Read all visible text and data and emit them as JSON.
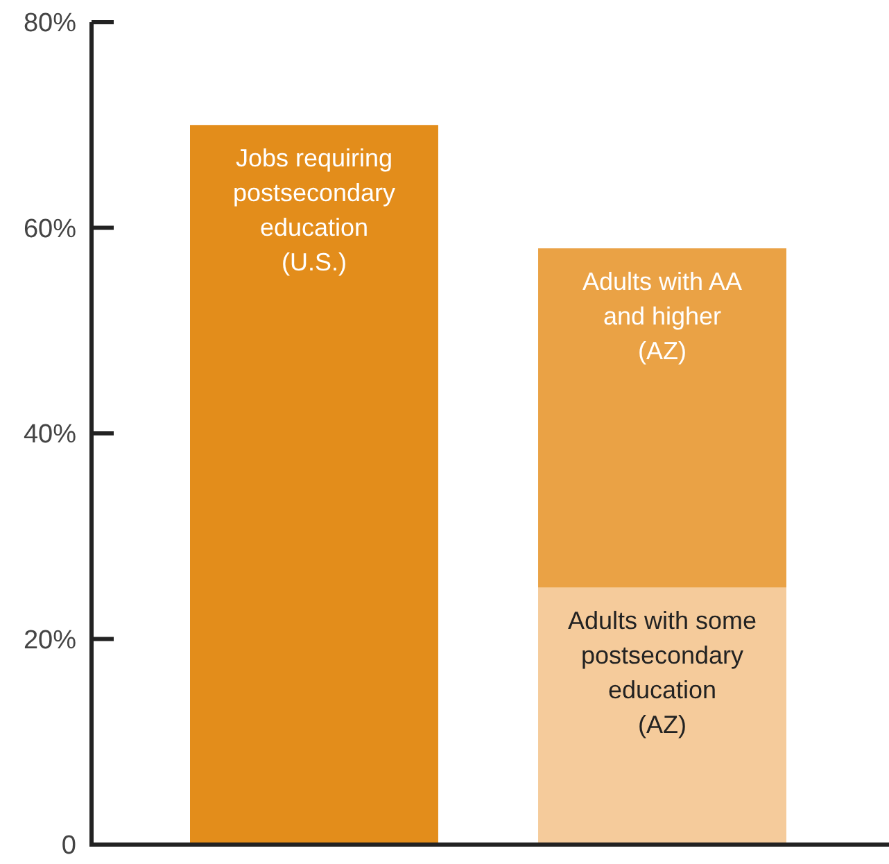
{
  "chart_data": {
    "type": "bar",
    "stacked": true,
    "categories": [
      null,
      null
    ],
    "series": [
      {
        "name": "Jobs requiring postsecondary education (U.S.)",
        "color": "#e38d1b",
        "values": [
          70,
          null
        ]
      },
      {
        "name": "Adults with some postsecondary education (AZ)",
        "color": "#f5cb9b",
        "values": [
          null,
          25
        ]
      },
      {
        "name": "Adults with AA and higher (AZ)",
        "color": "#eaa245",
        "values": [
          null,
          33
        ]
      }
    ],
    "ylim": [
      0,
      80
    ],
    "yticks": [
      0,
      {
        "value": 20,
        "label": "20%"
      },
      {
        "value": 40,
        "label": "40%"
      },
      {
        "value": 60,
        "label": "60%"
      },
      {
        "value": 80,
        "label": "80%"
      }
    ],
    "grid": false
  }
}
